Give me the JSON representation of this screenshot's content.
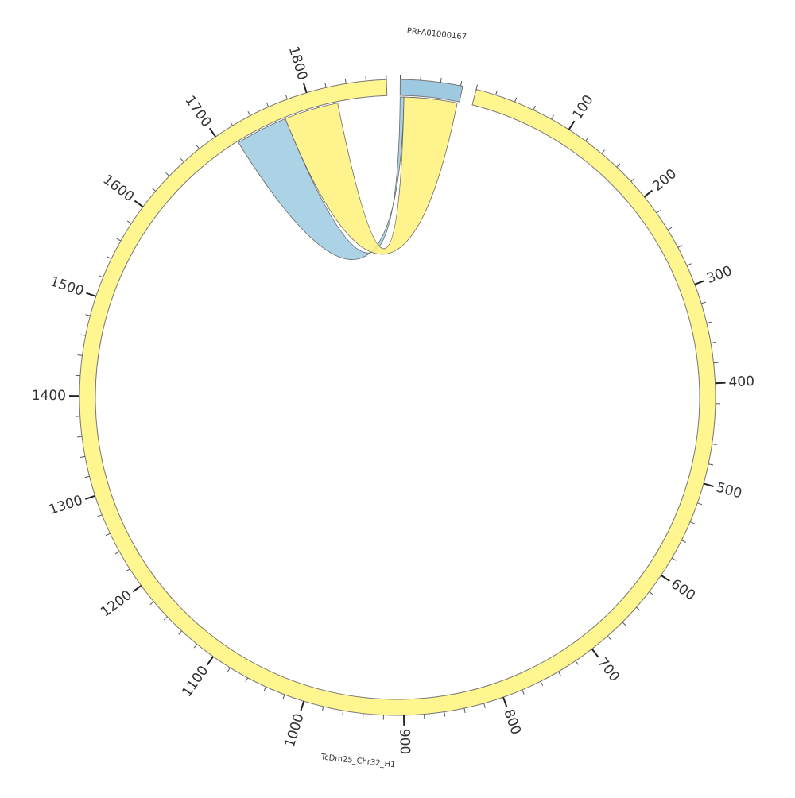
{
  "chart_data": {
    "type": "chord",
    "sectors": [
      {
        "name": "PRFA01000167",
        "length": 62,
        "color": "#9ecae1"
      },
      {
        "name": "TcDm25_Chr32_H1",
        "length": 1880,
        "color": "#fff68f"
      }
    ],
    "major_ticks": [
      100,
      200,
      300,
      400,
      500,
      600,
      700,
      800,
      900,
      1000,
      1100,
      1200,
      1300,
      1400,
      1500,
      1600,
      1700,
      1800
    ],
    "minor_tick_step": 20,
    "links": [
      {
        "source_sector": 1,
        "source_start": 1716,
        "source_end": 1771,
        "target_sector": 0,
        "target_start": 0,
        "target_end": 4,
        "color": "#9ecae1"
      },
      {
        "source_sector": 1,
        "source_start": 1771,
        "source_end": 1828,
        "target_sector": 0,
        "target_start": 4,
        "target_end": 60,
        "color": "#fff17a"
      }
    ]
  }
}
